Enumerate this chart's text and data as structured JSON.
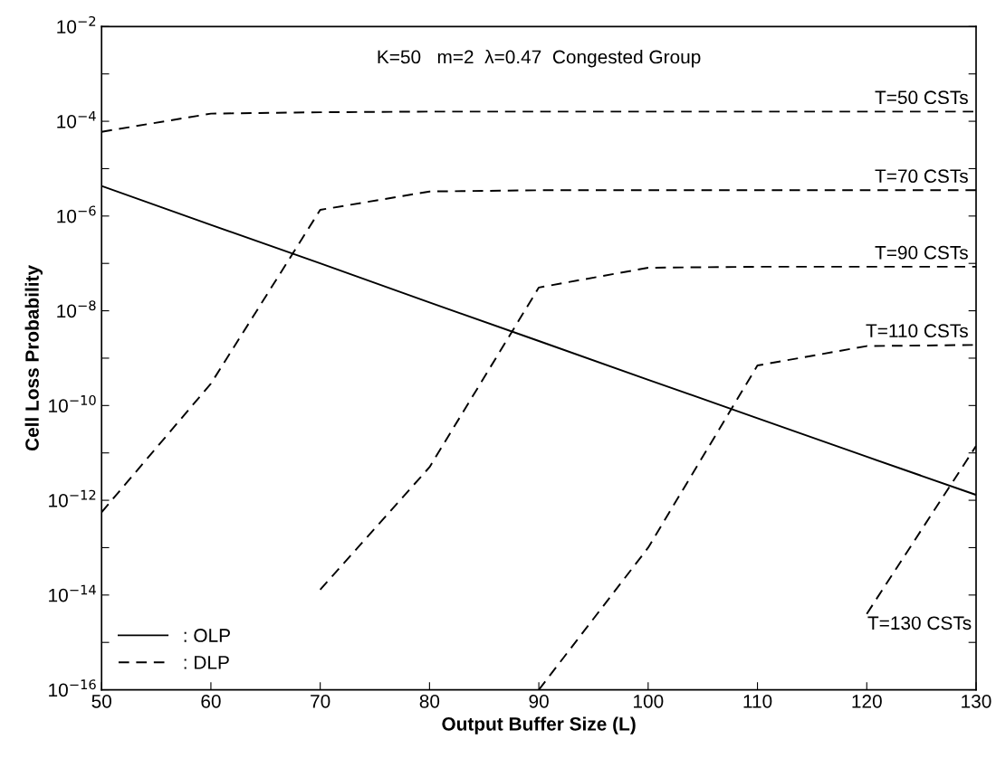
{
  "chart_data": {
    "type": "line",
    "xlabel": "Output Buffer Size (L)",
    "ylabel": "Cell Loss Probability",
    "log": "y",
    "xlim": [
      50,
      130
    ],
    "xticks": [
      50,
      60,
      70,
      80,
      90,
      100,
      110,
      120,
      130
    ],
    "ylim": [
      1e-16,
      0.01
    ],
    "yticks": [
      {
        "value": 1e-16,
        "label": "10$^{−16}$"
      },
      {
        "value": 1e-15,
        "label": null
      },
      {
        "value": 1e-14,
        "label": "10$^{−14}$"
      },
      {
        "value": 1e-13,
        "label": null
      },
      {
        "value": 1e-12,
        "label": "10$^{−12}$"
      },
      {
        "value": 1e-11,
        "label": null
      },
      {
        "value": 1e-10,
        "label": "10$^{−10}$"
      },
      {
        "value": 1e-09,
        "label": null
      },
      {
        "value": 1e-08,
        "label": "10$^{−8}$"
      },
      {
        "value": 1e-07,
        "label": null
      },
      {
        "value": 1e-06,
        "label": "10$^{−6}$"
      },
      {
        "value": 1e-05,
        "label": null
      },
      {
        "value": 0.0001,
        "label": "10$^{−4}$"
      },
      {
        "value": 0.001,
        "label": null
      },
      {
        "value": 0.01,
        "label": "10$^{−2}$"
      }
    ],
    "grid": false,
    "legend": "bottom left",
    "marker": "none",
    "annotations": [
      "K=50   m=2  λ=0.47  Congested Group",
      {
        "text": "T=50 CSTs",
        "y": 0.00016
      },
      {
        "text": "T=70 CSTs",
        "y": 3.5e-06
      },
      {
        "text": "T=90 CSTs",
        "y": 8.5e-08
      },
      {
        "text": "T=110 CSTs",
        "y": 1.9e-09
      },
      "T=130 CSTs"
    ],
    "series": [
      {
        "name": ": OLP",
        "color": "#000000",
        "line_style": "solid",
        "x": [
          50,
          60,
          70,
          80,
          90,
          100,
          110,
          120,
          130
        ],
        "values": [
          4.3e-06,
          6.5e-07,
          1e-07,
          1.5e-08,
          2.3e-09,
          3.5e-10,
          5.4e-11,
          8.3e-12,
          1.3e-12
        ]
      },
      {
        "name": ": DLP",
        "color": "#000000",
        "line_style": "dashed",
        "x": [
          50,
          60,
          70,
          80,
          90,
          100,
          110,
          120,
          130
        ],
        "values": [
          6e-05,
          0.000145,
          0.000155,
          0.00016,
          0.00016,
          0.00016,
          0.00016,
          0.00016,
          0.00016
        ]
      },
      {
        "color": "#000000",
        "line_style": "dashed",
        "x": [
          50,
          60,
          70,
          80,
          90,
          100,
          110,
          120,
          130
        ],
        "values": [
          5.6e-13,
          2.9e-10,
          1.35e-06,
          3.3e-06,
          3.5e-06,
          3.5e-06,
          3.5e-06,
          3.5e-06,
          3.5e-06
        ]
      },
      {
        "color": "#000000",
        "line_style": "dashed",
        "x": [
          70,
          80,
          90,
          100,
          110,
          120,
          130
        ],
        "values": [
          1.3e-14,
          5e-12,
          3.1e-08,
          8.1e-08,
          8.5e-08,
          8.5e-08,
          8.5e-08
        ]
      },
      {
        "color": "#000000",
        "line_style": "dashed",
        "x": [
          90,
          100,
          110,
          120,
          130
        ],
        "values": [
          1e-16,
          1e-13,
          7e-10,
          1.8e-09,
          1.9e-09
        ]
      },
      {
        "color": "#000000",
        "line_style": "dashed",
        "x": [
          120,
          130
        ],
        "values": [
          4e-15,
          1.4e-11
        ]
      }
    ]
  }
}
